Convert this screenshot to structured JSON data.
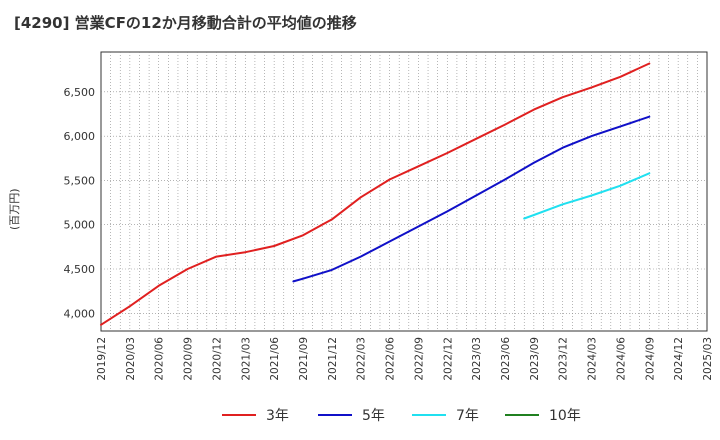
{
  "chart_data": {
    "type": "line",
    "title": "[4290]  営業CFの12か月移動合計の平均値の推移",
    "ylabel": "(百万円)",
    "xlabel": "",
    "ylim": [
      3800,
      6950
    ],
    "yticks": [
      4000,
      4500,
      5000,
      5500,
      6000,
      6500
    ],
    "ytick_labels": [
      "4,000",
      "4,500",
      "5,000",
      "5,500",
      "6,000",
      "6,500"
    ],
    "xticks": [
      "2019/12",
      "2020/03",
      "2020/06",
      "2020/09",
      "2020/12",
      "2021/03",
      "2021/06",
      "2021/09",
      "2021/12",
      "2022/03",
      "2022/06",
      "2022/09",
      "2022/12",
      "2023/03",
      "2023/06",
      "2023/09",
      "2023/12",
      "2024/03",
      "2024/06",
      "2024/09",
      "2024/12",
      "2025/03"
    ],
    "grid": true,
    "legend_position": "bottom",
    "series": [
      {
        "name": "3年",
        "color": "#e02020",
        "x": [
          "2019/12",
          "2020/03",
          "2020/06",
          "2020/09",
          "2020/12",
          "2021/03",
          "2021/06",
          "2021/09",
          "2021/12",
          "2022/03",
          "2022/06",
          "2022/09",
          "2022/12",
          "2023/03",
          "2023/06",
          "2023/09",
          "2023/12",
          "2024/03",
          "2024/06",
          "2024/09"
        ],
        "values": [
          3870,
          4080,
          4310,
          4500,
          4640,
          4690,
          4760,
          4880,
          5060,
          5310,
          5510,
          5660,
          5810,
          5970,
          6130,
          6300,
          6440,
          6550,
          6670,
          6820
        ]
      },
      {
        "name": "5年",
        "color": "#1010c8",
        "x": [
          "2021/08",
          "2021/09",
          "2021/12",
          "2022/03",
          "2022/06",
          "2022/09",
          "2022/12",
          "2023/03",
          "2023/06",
          "2023/09",
          "2023/12",
          "2024/03",
          "2024/06",
          "2024/09"
        ],
        "values": [
          4360,
          4390,
          4490,
          4640,
          4810,
          4980,
          5150,
          5330,
          5510,
          5700,
          5870,
          6000,
          6110,
          6220
        ]
      },
      {
        "name": "7年",
        "color": "#20e0f0",
        "x": [
          "2023/08",
          "2023/09",
          "2023/12",
          "2024/03",
          "2024/06",
          "2024/09"
        ],
        "values": [
          5070,
          5110,
          5230,
          5330,
          5440,
          5580
        ]
      },
      {
        "name": "10年",
        "color": "#208020",
        "x": [],
        "values": []
      }
    ]
  }
}
